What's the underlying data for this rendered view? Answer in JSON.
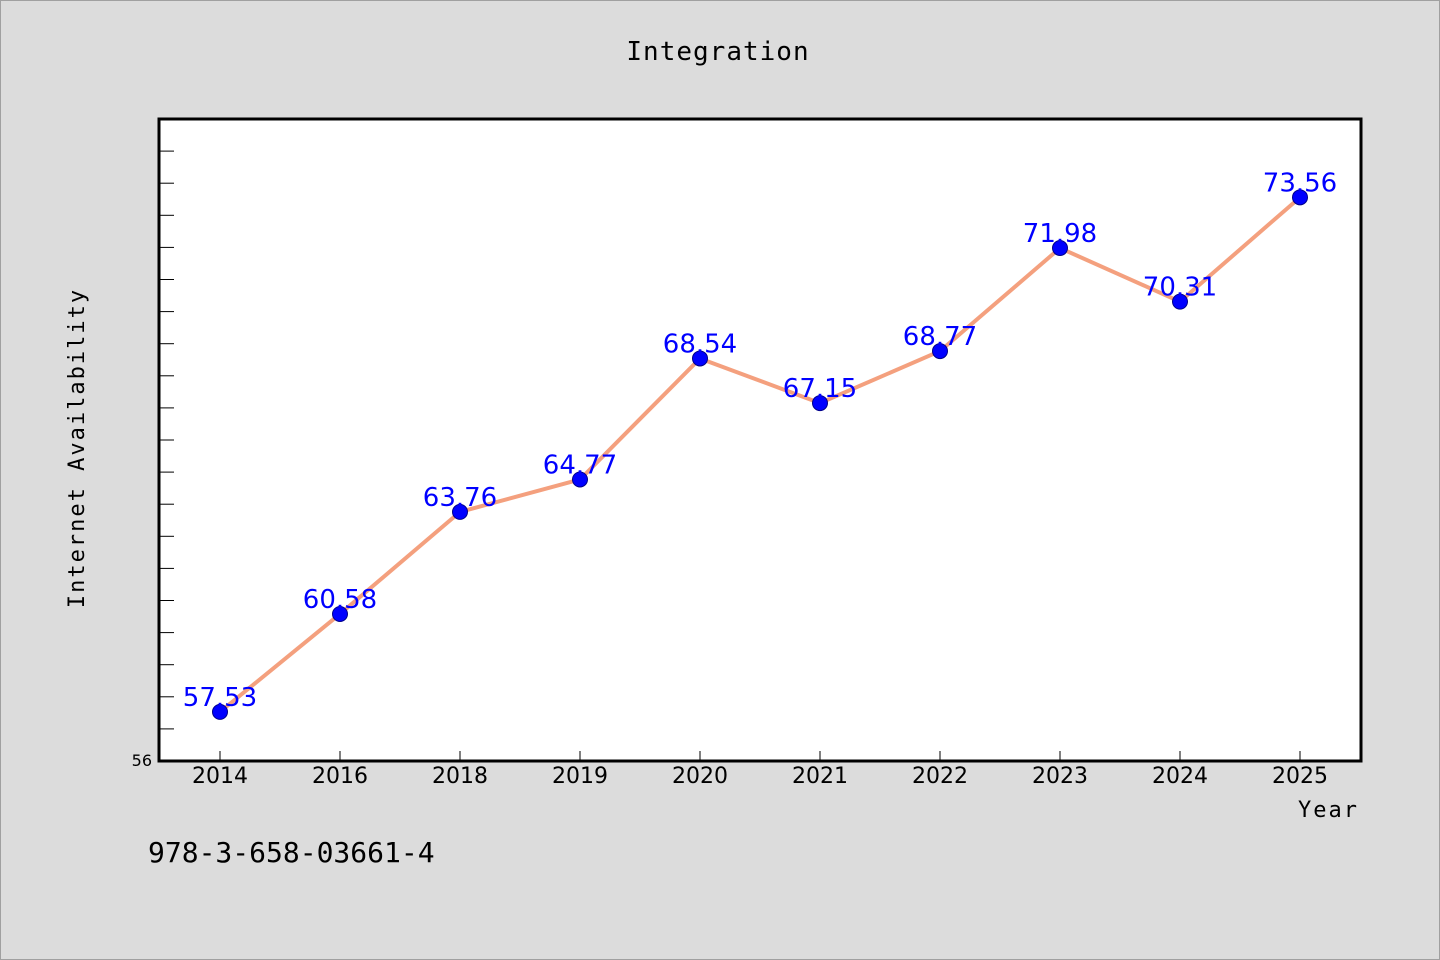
{
  "chart_data": {
    "type": "line",
    "title": "Integration",
    "xlabel": "Year",
    "ylabel": "Internet Availability",
    "categories": [
      "2014",
      "2016",
      "2018",
      "2019",
      "2020",
      "2021",
      "2022",
      "2023",
      "2024",
      "2025"
    ],
    "series": [
      {
        "values": [
          57.53,
          60.58,
          63.76,
          64.77,
          68.54,
          67.15,
          68.77,
          71.98,
          70.31,
          73.56
        ],
        "value_labels": [
          "57.53",
          "60.58",
          "63.76",
          "64.77",
          "68.54",
          "67.15",
          "68.77",
          "71.98",
          "70.31",
          "73.56"
        ]
      }
    ],
    "ylim": [
      56,
      76
    ],
    "y_tick_labels": [
      "56"
    ],
    "grid": false,
    "colors": {
      "line": "#f4a07e",
      "marker": "#0000ff",
      "label": "#0000ff"
    }
  },
  "footer": {
    "code": "978-3-658-03661-4"
  }
}
